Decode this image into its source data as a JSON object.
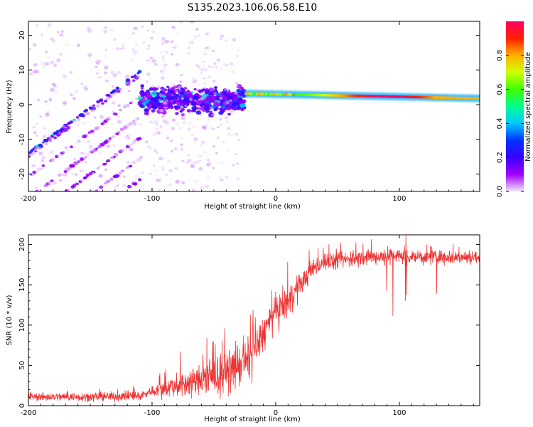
{
  "title": "S135.2023.106.06.58.E10",
  "chart_data": [
    {
      "type": "heatmap",
      "title": "",
      "xlabel": "Height of straight line (km)",
      "ylabel": "Frequency (Hz)",
      "xlim": [
        -200,
        165
      ],
      "ylim": [
        -25,
        24
      ],
      "xticks": [
        -200,
        -100,
        0,
        100
      ],
      "xtick_labels": [
        "-200",
        "-100",
        "0",
        "100"
      ],
      "yticks": [
        -20,
        -10,
        0,
        10,
        20
      ],
      "ytick_labels": [
        "-20",
        "-10",
        "0",
        "10",
        "20"
      ],
      "colorbar": {
        "label": "Normalized spectral amplitude",
        "range": [
          0,
          1
        ],
        "ticks": [
          0.0,
          0.2,
          0.4,
          0.6,
          0.8
        ],
        "tick_labels": [
          "0.0",
          "0.2",
          "0.4",
          "0.6",
          "0.8"
        ],
        "colors": [
          "#f2e6ff",
          "#a000ff",
          "#3a00ff",
          "#0033ff",
          "#00c8ff",
          "#00ff90",
          "#40ff00",
          "#d0ff00",
          "#ffb000",
          "#ff2000",
          "#ff0066"
        ]
      },
      "features": {
        "diagonal_streaks": {
          "x_range": [
            -200,
            -110
          ],
          "slope_hz_per_km": 0.26,
          "offsets_hz": [
            -29,
            -23,
            -17,
            -11,
            -5,
            1,
            7,
            13,
            19,
            25,
            31,
            37
          ],
          "dominant_offset_hz": 38
        },
        "turbulent_region": {
          "x_range": [
            -110,
            -25
          ],
          "freq_center_hz": 1.5,
          "freq_spread_hz": 3.5
        },
        "stable_line": {
          "x_range": [
            -25,
            165
          ],
          "freq_start_hz": 3.2,
          "freq_end_hz": 1.8,
          "peak_x_km": 90
        }
      }
    },
    {
      "type": "line",
      "title": "",
      "xlabel": "Height of straight line (km)",
      "ylabel": "SNR (10 * v/v)",
      "xlim": [
        -200,
        165
      ],
      "ylim": [
        0,
        212
      ],
      "xticks": [
        -200,
        -100,
        0,
        100
      ],
      "xtick_labels": [
        "-200",
        "-100",
        "0",
        "100"
      ],
      "yticks": [
        0,
        50,
        100,
        150,
        200
      ],
      "ytick_labels": [
        "0",
        "50",
        "100",
        "150",
        "200"
      ],
      "series": [
        {
          "name": "SNR",
          "color": "#ee3333",
          "x": [
            -200,
            -150,
            -110,
            -100,
            -80,
            -60,
            -40,
            -20,
            -10,
            0,
            10,
            20,
            30,
            40,
            60,
            80,
            100,
            120,
            140,
            165
          ],
          "y": [
            11,
            11,
            12,
            18,
            25,
            32,
            40,
            60,
            90,
            115,
            130,
            150,
            170,
            178,
            182,
            185,
            186,
            184,
            185,
            184
          ]
        }
      ],
      "noise_amplitude": [
        {
          "x": -200,
          "amp": 7
        },
        {
          "x": -100,
          "amp": 9
        },
        {
          "x": -80,
          "amp": 22
        },
        {
          "x": -30,
          "amp": 40
        },
        {
          "x": 10,
          "amp": 28
        },
        {
          "x": 30,
          "amp": 15
        },
        {
          "x": 165,
          "amp": 12
        }
      ],
      "dropouts": {
        "x_range": [
          80,
          165
        ],
        "min_y": 100
      }
    }
  ]
}
